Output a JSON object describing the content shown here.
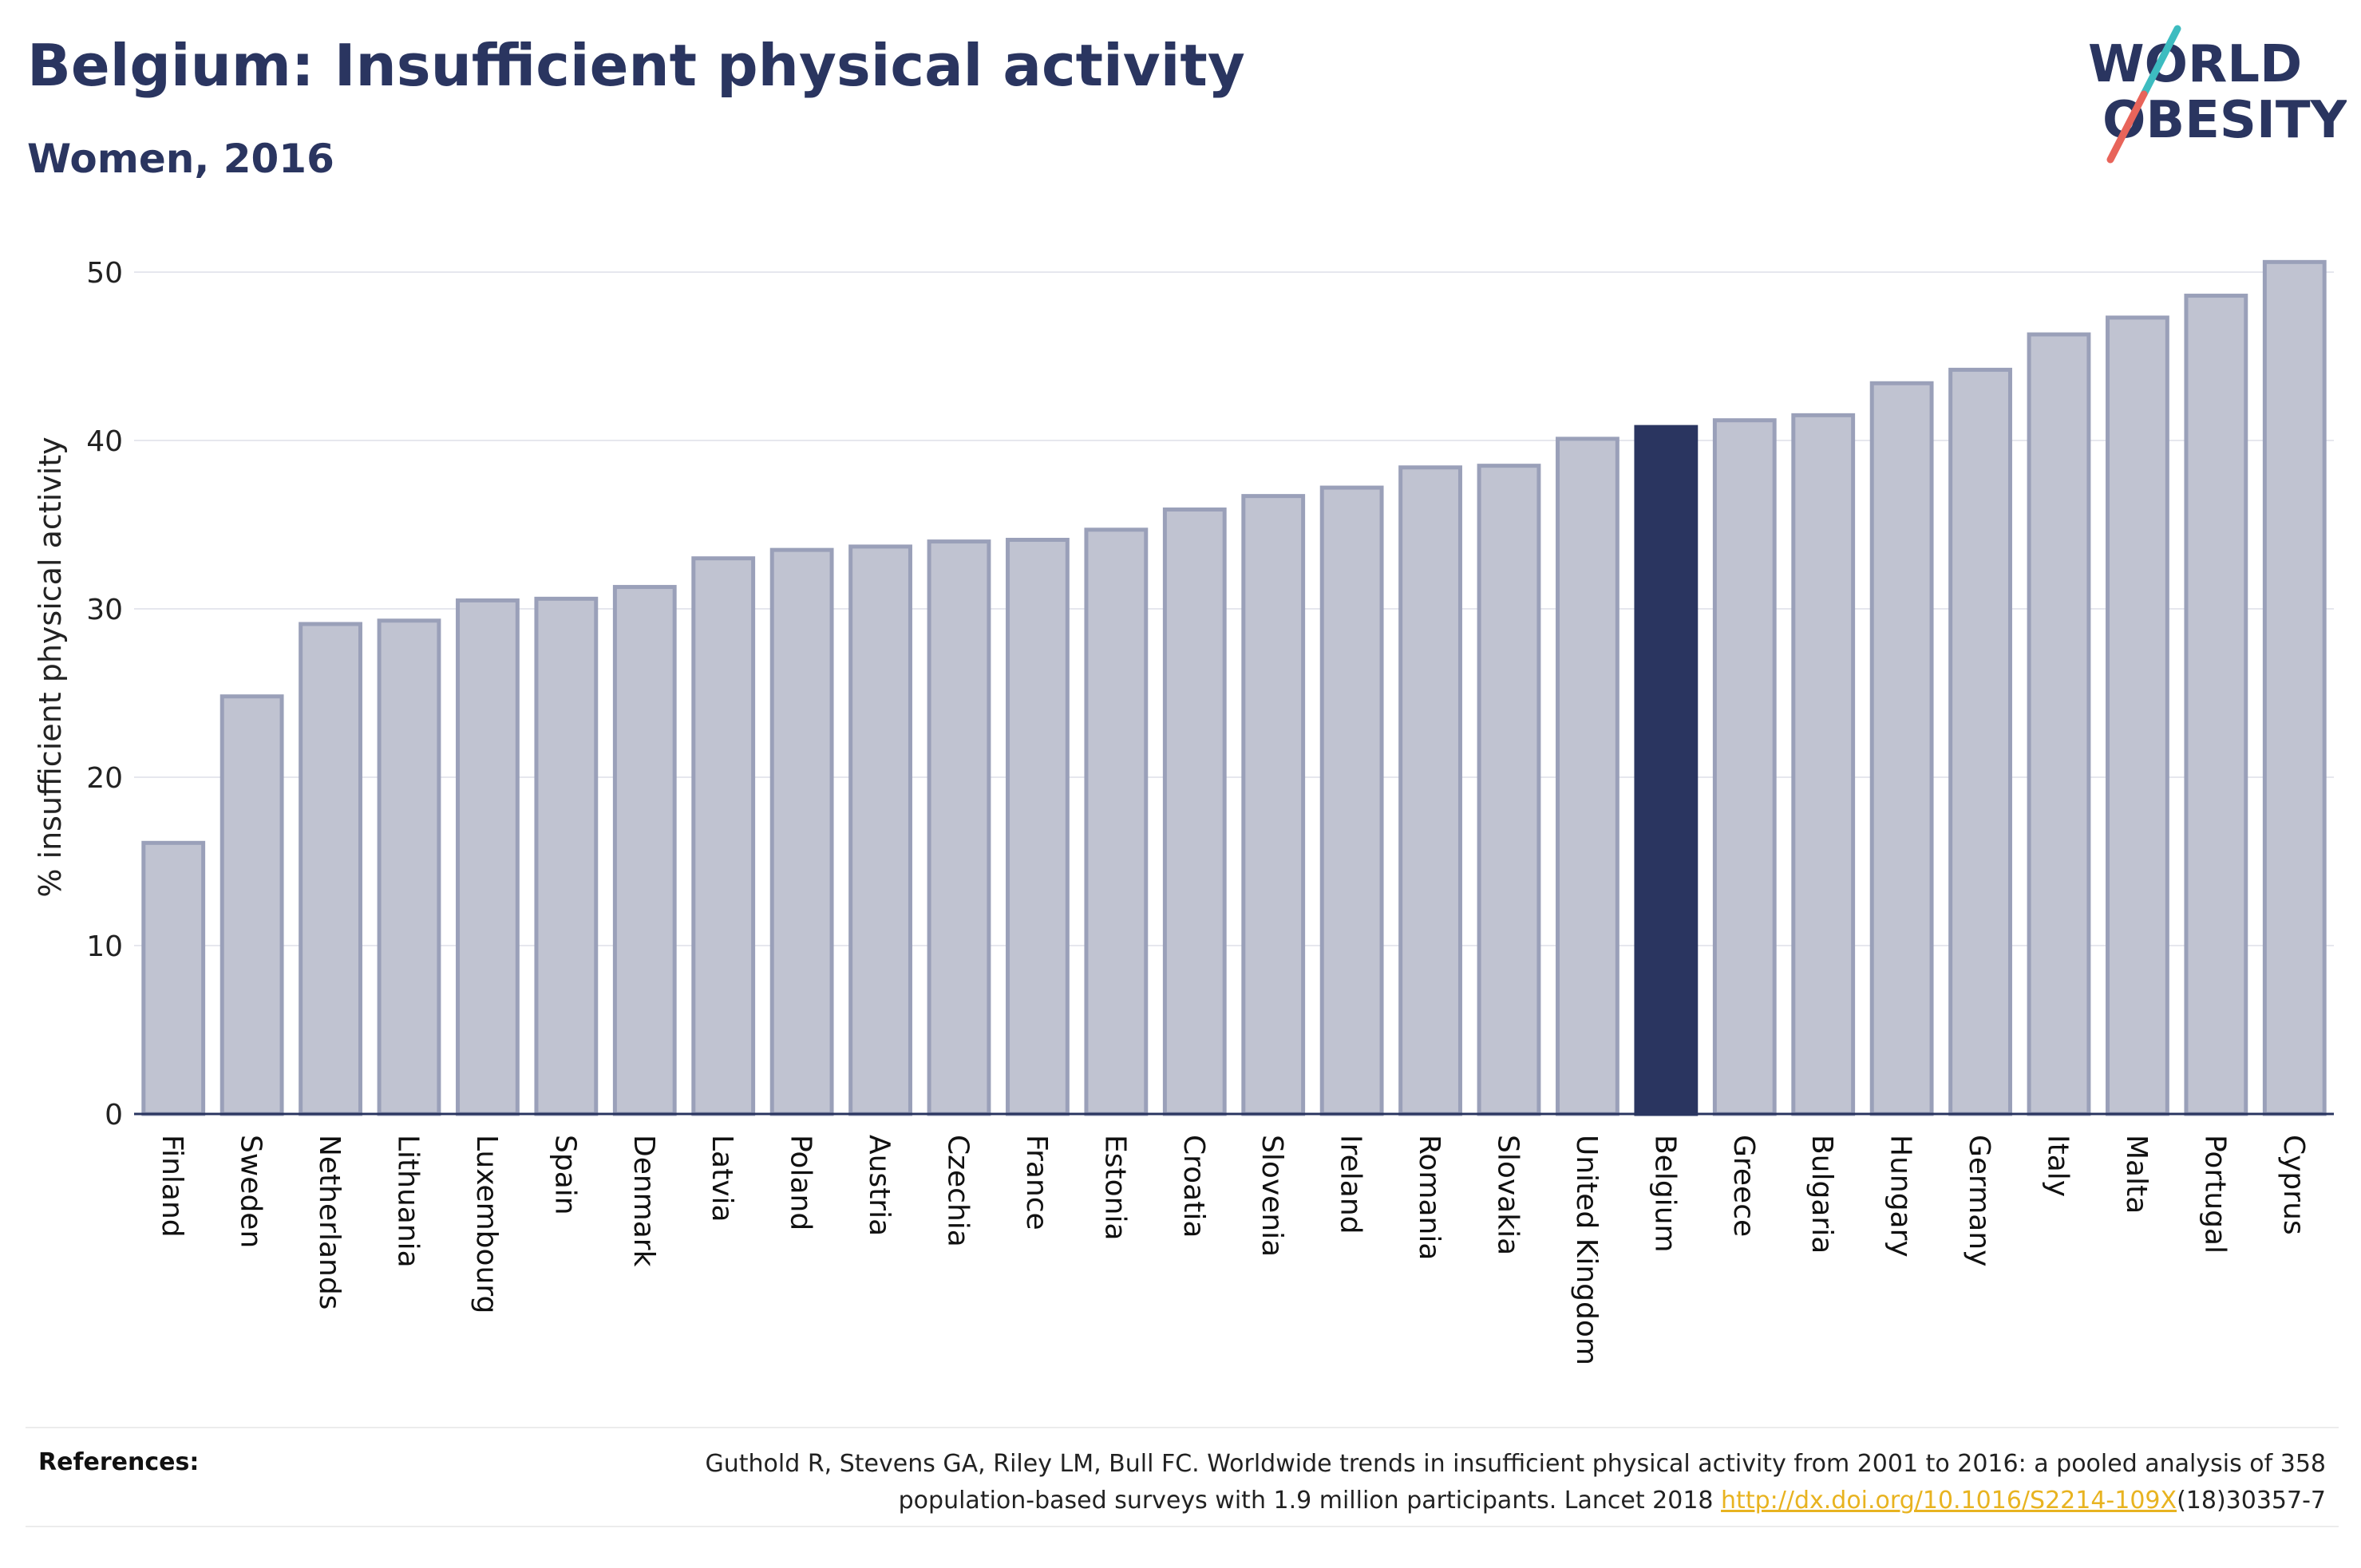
{
  "header": {
    "title": "Belgium: Insufficient physical activity",
    "subtitle": "Women, 2016"
  },
  "logo": {
    "line1": "WORLD",
    "line2": "OBESITY",
    "slash_colors": [
      "#3dbcc0",
      "#e8645a"
    ]
  },
  "colors": {
    "bar": "#c0c3d1",
    "bar_border": "#9aa0b9",
    "highlight": "#2a3560",
    "text": "#2a3560"
  },
  "chart_data": {
    "type": "bar",
    "title": "Belgium: Insufficient physical activity",
    "subtitle": "Women, 2016",
    "xlabel": "",
    "ylabel": "% insufficient physical activity",
    "ylim": [
      0,
      52
    ],
    "yticks": [
      0,
      10,
      20,
      30,
      40,
      50
    ],
    "grid": true,
    "highlight": "Belgium",
    "categories": [
      "Finland",
      "Sweden",
      "Netherlands",
      "Lithuania",
      "Luxembourg",
      "Spain",
      "Denmark",
      "Latvia",
      "Poland",
      "Austria",
      "Czechia",
      "France",
      "Estonia",
      "Croatia",
      "Slovenia",
      "Ireland",
      "Romania",
      "Slovakia",
      "United Kingdom",
      "Belgium",
      "Greece",
      "Bulgaria",
      "Hungary",
      "Germany",
      "Italy",
      "Malta",
      "Portugal",
      "Cyprus"
    ],
    "values": [
      16.1,
      24.8,
      29.1,
      29.3,
      30.5,
      30.6,
      31.3,
      33.0,
      33.5,
      33.7,
      34.0,
      34.1,
      34.7,
      35.9,
      36.7,
      37.2,
      38.4,
      38.5,
      40.1,
      40.8,
      41.2,
      41.5,
      43.4,
      44.2,
      46.3,
      47.3,
      48.6,
      50.6
    ]
  },
  "references": {
    "label": "References:",
    "text_before": "Guthold R, Stevens GA, Riley LM, Bull FC. Worldwide trends in insufficient physical activity from 2001 to 2016: a pooled analysis of 358 population-based surveys with 1.9 million participants. Lancet 2018 ",
    "link": "http://dx.doi.org/10.1016/S2214-109X",
    "text_after": "(18)30357-7"
  }
}
